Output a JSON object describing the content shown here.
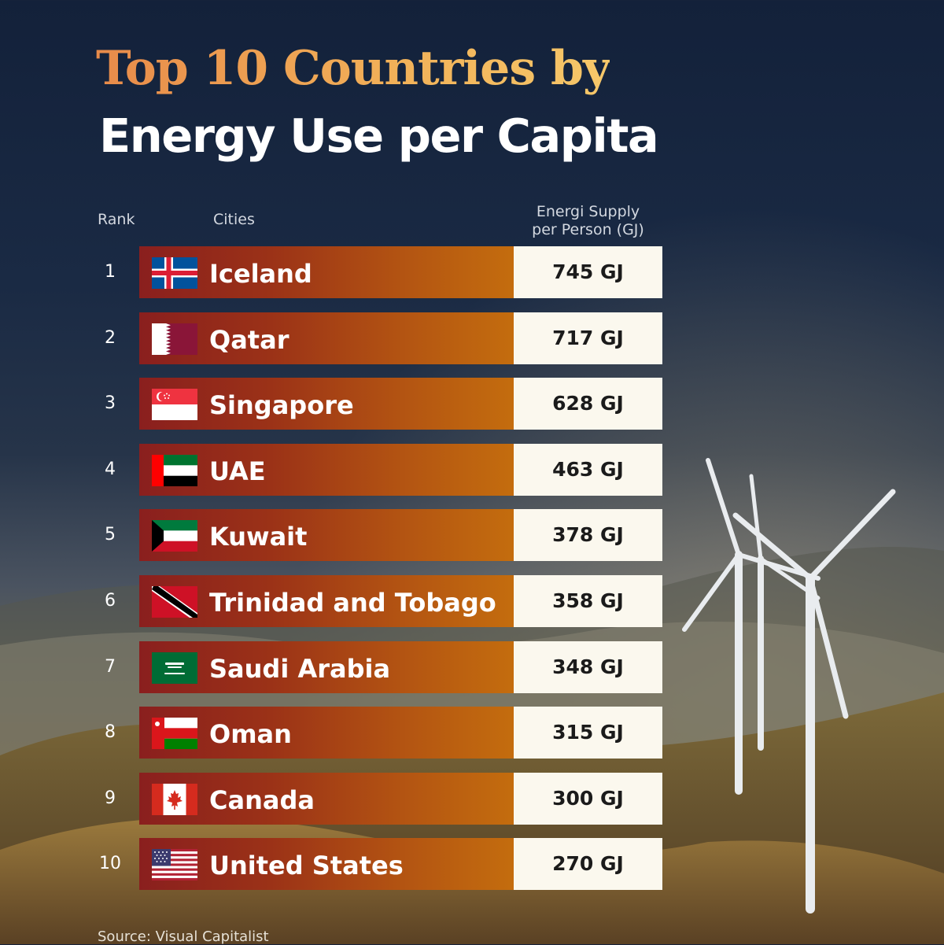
{
  "title_line1": "Top 10 Countries by",
  "title_line2": "Energy Use per Capita",
  "headers": {
    "rank": "Rank",
    "cities": "Cities",
    "value_line1": "Energi Supply",
    "value_line2": "per Person (GJ)"
  },
  "rows": [
    {
      "rank": "1",
      "country": "Iceland",
      "value": "745 GJ",
      "flag_icon": "iceland-flag-icon"
    },
    {
      "rank": "2",
      "country": "Qatar",
      "value": "717 GJ",
      "flag_icon": "qatar-flag-icon"
    },
    {
      "rank": "3",
      "country": "Singapore",
      "value": "628 GJ",
      "flag_icon": "singapore-flag-icon"
    },
    {
      "rank": "4",
      "country": "UAE",
      "value": "463 GJ",
      "flag_icon": "uae-flag-icon"
    },
    {
      "rank": "5",
      "country": "Kuwait",
      "value": "378 GJ",
      "flag_icon": "kuwait-flag-icon"
    },
    {
      "rank": "6",
      "country": "Trinidad and Tobago",
      "value": "358 GJ",
      "flag_icon": "trinidad-and-tobago-flag-icon"
    },
    {
      "rank": "7",
      "country": "Saudi Arabia",
      "value": "348 GJ",
      "flag_icon": "saudi-arabia-flag-icon"
    },
    {
      "rank": "8",
      "country": "Oman",
      "value": "315 GJ",
      "flag_icon": "oman-flag-icon"
    },
    {
      "rank": "9",
      "country": "Canada",
      "value": "300 GJ",
      "flag_icon": "canada-flag-icon"
    },
    {
      "rank": "10",
      "country": "United States",
      "value": "270 GJ",
      "flag_icon": "united-states-flag-icon"
    }
  ],
  "source": "Source: Visual Capitalist",
  "colors": {
    "bar_start": "#8a1f1e",
    "bar_end": "#c46d0e",
    "value_box": "#fbf8ee",
    "title_accent": "#f2b259"
  },
  "chart_data": {
    "type": "table",
    "title": "Top 10 Countries by Energy Use per Capita",
    "columns": [
      "Rank",
      "Cities",
      "Energi Supply per Person (GJ)"
    ],
    "categories": [
      "Iceland",
      "Qatar",
      "Singapore",
      "UAE",
      "Kuwait",
      "Trinidad and Tobago",
      "Saudi Arabia",
      "Oman",
      "Canada",
      "United States"
    ],
    "values": [
      745,
      717,
      628,
      463,
      378,
      358,
      348,
      315,
      300,
      270
    ],
    "unit": "GJ"
  }
}
